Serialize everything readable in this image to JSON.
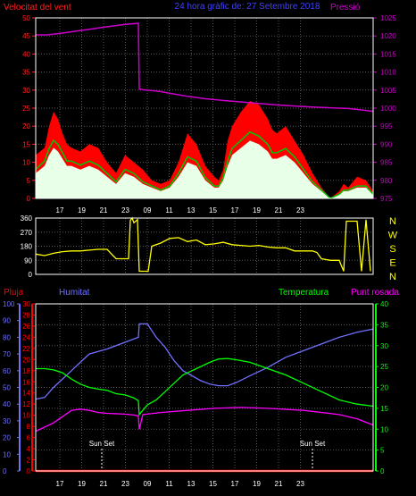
{
  "title": "24 hora gràfic de:  27 Setembre 2018",
  "colors": {
    "background": "#000000",
    "frame": "#ffffff",
    "grid": "#555555",
    "wind_axis": "#ff2020",
    "pressure": "#cc00cc",
    "gust": "#ff0000",
    "wind": "#00c800",
    "wind_fill": "#e8ffe8",
    "direction": "#ffff00",
    "rain": "#ff0000",
    "humidity": "#7070ff",
    "temperature": "#00ff00",
    "dewpoint": "#ff00ff",
    "title": "#4040ff"
  },
  "chart_data": [
    {
      "type": "line",
      "id": "wind-pressure",
      "left_label": "Velocitat del vent",
      "right_label": "Pressió",
      "left_ylim": [
        0,
        50
      ],
      "left_ticks": [
        0,
        5,
        10,
        15,
        20,
        25,
        30,
        35,
        40,
        45,
        50
      ],
      "right_ylim": [
        975,
        1025
      ],
      "right_ticks": [
        975,
        980,
        985,
        990,
        995,
        1000,
        1005,
        1010,
        1015,
        1020,
        1025
      ],
      "hour_ticks": [
        "17",
        "19",
        "21",
        "23",
        "09",
        "11",
        "13",
        "15",
        "17",
        "19",
        "21",
        "23"
      ],
      "pressure": {
        "x": [
          0,
          13,
          30,
          45,
          65,
          78,
          100,
          115,
          116,
          120,
          140,
          150,
          170,
          190,
          220,
          250,
          270,
          290,
          310,
          330,
          350,
          368,
          378
        ],
        "y": [
          1020.3,
          1020.3,
          1020.8,
          1021.3,
          1022.0,
          1022.5,
          1023.2,
          1023.5,
          1005.3,
          1005.1,
          1004.6,
          1004.1,
          1003.3,
          1002.6,
          1001.9,
          1001.3,
          1000.9,
          1000.6,
          1000.3,
          1000.1,
          999.9,
          999.4,
          999.1
        ]
      },
      "gust": {
        "x": [
          0,
          10,
          15,
          20,
          25,
          30,
          35,
          40,
          50,
          60,
          70,
          80,
          90,
          100,
          110,
          120,
          130,
          140,
          150,
          160,
          170,
          180,
          190,
          200,
          205,
          210,
          215,
          220,
          230,
          240,
          250,
          260,
          265,
          270,
          280,
          290,
          300,
          310,
          320,
          330,
          340,
          345,
          350,
          360,
          370,
          378
        ],
        "y": [
          12,
          14,
          20,
          24,
          22,
          18,
          15,
          14,
          13,
          15,
          14,
          10,
          7,
          12,
          10,
          8,
          5,
          4,
          5,
          10,
          18,
          15,
          9,
          6,
          5,
          8,
          16,
          20,
          24,
          27,
          26,
          22,
          19,
          18,
          20,
          16,
          12,
          7,
          3,
          0,
          2,
          4,
          3,
          6,
          5,
          2
        ]
      },
      "wind": {
        "x": [
          0,
          10,
          15,
          20,
          25,
          30,
          35,
          40,
          50,
          60,
          70,
          80,
          90,
          100,
          110,
          120,
          130,
          140,
          150,
          160,
          170,
          180,
          190,
          200,
          205,
          210,
          215,
          220,
          230,
          240,
          250,
          260,
          265,
          270,
          280,
          290,
          300,
          310,
          320,
          330,
          340,
          345,
          350,
          360,
          370,
          378
        ],
        "y": [
          7,
          9,
          12,
          14,
          13,
          11,
          9,
          9,
          8,
          9,
          8,
          6,
          4,
          7,
          6,
          4,
          3,
          2,
          3,
          6,
          10,
          9,
          5,
          3,
          3,
          5,
          9,
          12,
          14,
          16,
          15,
          13,
          11,
          11,
          12,
          10,
          7,
          4,
          2,
          0,
          1,
          2,
          2,
          3,
          3,
          1
        ]
      }
    },
    {
      "type": "line",
      "id": "wind-direction",
      "left_ylim": [
        0,
        360
      ],
      "left_ticks": [
        0,
        90,
        180,
        270,
        360
      ],
      "right_labels": [
        "N",
        "W",
        "S",
        "E",
        "N"
      ],
      "direction": {
        "x": [
          0,
          10,
          20,
          30,
          40,
          50,
          60,
          70,
          80,
          90,
          100,
          104,
          106,
          108,
          110,
          114,
          116,
          118,
          120,
          126,
          130,
          140,
          150,
          160,
          170,
          180,
          190,
          200,
          210,
          220,
          230,
          240,
          250,
          260,
          270,
          280,
          290,
          300,
          310,
          315,
          320,
          330,
          340,
          345,
          348,
          352,
          360,
          365,
          370,
          375
        ],
        "y": [
          130,
          120,
          135,
          145,
          150,
          150,
          155,
          160,
          160,
          100,
          100,
          100,
          345,
          360,
          330,
          350,
          20,
          20,
          20,
          20,
          180,
          200,
          230,
          235,
          210,
          220,
          190,
          195,
          205,
          190,
          185,
          180,
          185,
          175,
          170,
          170,
          150,
          150,
          150,
          140,
          100,
          90,
          90,
          20,
          340,
          340,
          340,
          20,
          350,
          20
        ]
      }
    },
    {
      "type": "line",
      "id": "climate",
      "labels": {
        "rain": "Pluja",
        "humidity": "Humitat",
        "temperature": "Temperatura",
        "dewpoint": "Punt rosada"
      },
      "rain_ylim": [
        0,
        30
      ],
      "rain_ticks": [
        0,
        2,
        4,
        6,
        8,
        10,
        12,
        14,
        16,
        18,
        20,
        22,
        24,
        26,
        28,
        30
      ],
      "humidity_ylim": [
        0,
        100
      ],
      "humidity_ticks": [
        0,
        10,
        20,
        30,
        40,
        50,
        60,
        70,
        80,
        90,
        100
      ],
      "temp_ylim": [
        0,
        40
      ],
      "temp_ticks": [
        0,
        5,
        10,
        15,
        20,
        25,
        30,
        35,
        40
      ],
      "hour_ticks": [
        "17",
        "19",
        "21",
        "23",
        "09",
        "11",
        "13",
        "15",
        "17",
        "19",
        "21",
        "23"
      ],
      "annotations": [
        "Sun Set",
        "Sun Set"
      ],
      "rain": {
        "x": [
          0,
          378
        ],
        "y": [
          0,
          0
        ]
      },
      "humidity": {
        "x": [
          0,
          10,
          20,
          30,
          40,
          50,
          60,
          80,
          100,
          115,
          116,
          125,
          135,
          145,
          155,
          165,
          175,
          185,
          195,
          205,
          215,
          225,
          240,
          260,
          280,
          300,
          320,
          340,
          360,
          378
        ],
        "y": [
          43,
          44,
          50,
          55,
          60,
          65,
          70,
          73,
          77,
          80,
          88,
          88,
          80,
          74,
          66,
          60,
          57,
          54,
          52,
          51,
          51,
          53,
          57,
          62,
          68,
          72,
          76,
          80,
          83,
          85
        ]
      },
      "temperature": {
        "x": [
          0,
          10,
          20,
          30,
          40,
          50,
          60,
          70,
          80,
          90,
          100,
          110,
          115,
          116,
          125,
          135,
          145,
          155,
          165,
          175,
          185,
          195,
          205,
          215,
          225,
          240,
          260,
          280,
          300,
          320,
          340,
          360,
          378
        ],
        "y": [
          24.5,
          24.5,
          24.2,
          23.5,
          22.0,
          20.8,
          20.0,
          19.6,
          19.3,
          18.5,
          18.2,
          17.5,
          16.8,
          13.5,
          15.8,
          17.0,
          19.0,
          21.0,
          23.0,
          24.0,
          25.0,
          26.0,
          26.8,
          26.9,
          26.6,
          26.0,
          24.5,
          23.0,
          21.0,
          19.0,
          17.0,
          16.0,
          15.5
        ]
      },
      "dewpoint": {
        "x": [
          0,
          10,
          20,
          30,
          40,
          50,
          60,
          70,
          80,
          100,
          110,
          115,
          116,
          120,
          140,
          170,
          200,
          230,
          260,
          300,
          340,
          360,
          378
        ],
        "y": [
          9.5,
          10.5,
          11.5,
          13.0,
          14.5,
          14.8,
          14.5,
          14.0,
          13.8,
          13.6,
          13.4,
          13.2,
          10.0,
          13.5,
          14.0,
          14.5,
          15.0,
          15.2,
          15.0,
          14.5,
          13.5,
          12.5,
          11.0
        ]
      }
    }
  ]
}
